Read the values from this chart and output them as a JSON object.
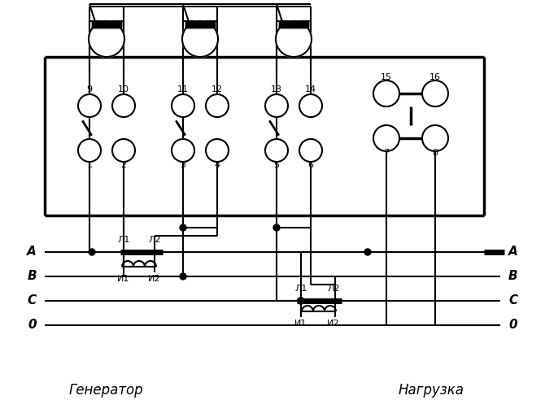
{
  "bg_color": "#ffffff",
  "line_color": "#000000",
  "title_font": 13,
  "label_font": 11,
  "fig_width": 6.7,
  "fig_height": 4.92,
  "phases": [
    "A",
    "B",
    "C",
    "0"
  ],
  "bottom_labels_left": [
    "Генератор"
  ],
  "bottom_labels_right": [
    "Нагрузка"
  ]
}
